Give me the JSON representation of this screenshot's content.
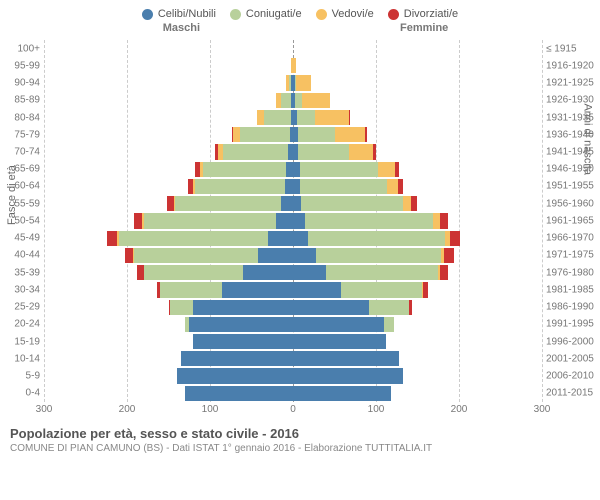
{
  "type": "population-pyramid",
  "legend": [
    {
      "label": "Celibi/Nubili",
      "color": "#4a7ead"
    },
    {
      "label": "Coniugati/e",
      "color": "#b8d09b"
    },
    {
      "label": "Vedovi/e",
      "color": "#f7c162"
    },
    {
      "label": "Divorziati/e",
      "color": "#cc3333"
    }
  ],
  "header_left": "Maschi",
  "header_right": "Femmine",
  "ylabel_left": "Fasce di età",
  "ylabel_right": "Anni di nascita",
  "xlim_max": 300,
  "x_ticks": [
    -300,
    -200,
    -100,
    0,
    100,
    200,
    300
  ],
  "x_tick_labels": [
    "300",
    "200",
    "100",
    "0",
    "100",
    "200",
    "300"
  ],
  "grid_color": "#cccccc",
  "background_color": "#ffffff",
  "bar_order": [
    "celibi",
    "coniugati",
    "vedovi",
    "divorziati"
  ],
  "rows": [
    {
      "age": "100+",
      "birth": "≤ 1915",
      "m": {
        "celibi": 0,
        "coniugati": 0,
        "vedovi": 0,
        "divorziati": 0
      },
      "f": {
        "celibi": 0,
        "coniugati": 0,
        "vedovi": 0,
        "divorziati": 0
      }
    },
    {
      "age": "95-99",
      "birth": "1916-1920",
      "m": {
        "celibi": 0,
        "coniugati": 0,
        "vedovi": 2,
        "divorziati": 0
      },
      "f": {
        "celibi": 0,
        "coniugati": 0,
        "vedovi": 4,
        "divorziati": 0
      }
    },
    {
      "age": "90-94",
      "birth": "1921-1925",
      "m": {
        "celibi": 2,
        "coniugati": 3,
        "vedovi": 3,
        "divorziati": 0
      },
      "f": {
        "celibi": 2,
        "coniugati": 2,
        "vedovi": 18,
        "divorziati": 0
      }
    },
    {
      "age": "85-89",
      "birth": "1926-1930",
      "m": {
        "celibi": 2,
        "coniugati": 12,
        "vedovi": 6,
        "divorziati": 0
      },
      "f": {
        "celibi": 3,
        "coniugati": 8,
        "vedovi": 34,
        "divorziati": 0
      }
    },
    {
      "age": "80-84",
      "birth": "1931-1935",
      "m": {
        "celibi": 3,
        "coniugati": 32,
        "vedovi": 8,
        "divorziati": 0
      },
      "f": {
        "celibi": 5,
        "coniugati": 22,
        "vedovi": 40,
        "divorziati": 2
      }
    },
    {
      "age": "75-79",
      "birth": "1936-1940",
      "m": {
        "celibi": 4,
        "coniugati": 60,
        "vedovi": 8,
        "divorziati": 2
      },
      "f": {
        "celibi": 6,
        "coniugati": 45,
        "vedovi": 36,
        "divorziati": 2
      }
    },
    {
      "age": "70-74",
      "birth": "1941-1945",
      "m": {
        "celibi": 6,
        "coniugati": 78,
        "vedovi": 6,
        "divorziati": 4
      },
      "f": {
        "celibi": 6,
        "coniugati": 62,
        "vedovi": 28,
        "divorziati": 4
      }
    },
    {
      "age": "65-69",
      "birth": "1946-1950",
      "m": {
        "celibi": 8,
        "coniugati": 100,
        "vedovi": 4,
        "divorziati": 6
      },
      "f": {
        "celibi": 8,
        "coniugati": 95,
        "vedovi": 20,
        "divorziati": 5
      }
    },
    {
      "age": "60-64",
      "birth": "1951-1955",
      "m": {
        "celibi": 10,
        "coniugati": 108,
        "vedovi": 3,
        "divorziati": 6
      },
      "f": {
        "celibi": 8,
        "coniugati": 105,
        "vedovi": 14,
        "divorziati": 5
      }
    },
    {
      "age": "55-59",
      "birth": "1956-1960",
      "m": {
        "celibi": 14,
        "coniugati": 128,
        "vedovi": 2,
        "divorziati": 8
      },
      "f": {
        "celibi": 10,
        "coniugati": 122,
        "vedovi": 10,
        "divorziati": 7
      }
    },
    {
      "age": "50-54",
      "birth": "1961-1965",
      "m": {
        "celibi": 20,
        "coniugati": 160,
        "vedovi": 2,
        "divorziati": 10
      },
      "f": {
        "celibi": 14,
        "coniugati": 155,
        "vedovi": 8,
        "divorziati": 10
      }
    },
    {
      "age": "45-49",
      "birth": "1966-1970",
      "m": {
        "celibi": 30,
        "coniugati": 180,
        "vedovi": 2,
        "divorziati": 12
      },
      "f": {
        "celibi": 18,
        "coniugati": 165,
        "vedovi": 6,
        "divorziati": 12
      }
    },
    {
      "age": "40-44",
      "birth": "1971-1975",
      "m": {
        "celibi": 42,
        "coniugati": 150,
        "vedovi": 1,
        "divorziati": 10
      },
      "f": {
        "celibi": 28,
        "coniugati": 150,
        "vedovi": 4,
        "divorziati": 12
      }
    },
    {
      "age": "35-39",
      "birth": "1976-1980",
      "m": {
        "celibi": 60,
        "coniugati": 120,
        "vedovi": 0,
        "divorziati": 8
      },
      "f": {
        "celibi": 40,
        "coniugati": 135,
        "vedovi": 2,
        "divorziati": 10
      }
    },
    {
      "age": "30-34",
      "birth": "1981-1985",
      "m": {
        "celibi": 85,
        "coniugati": 75,
        "vedovi": 0,
        "divorziati": 4
      },
      "f": {
        "celibi": 58,
        "coniugati": 98,
        "vedovi": 1,
        "divorziati": 6
      }
    },
    {
      "age": "25-29",
      "birth": "1986-1990",
      "m": {
        "celibi": 120,
        "coniugati": 28,
        "vedovi": 0,
        "divorziati": 2
      },
      "f": {
        "celibi": 92,
        "coniugati": 48,
        "vedovi": 0,
        "divorziati": 3
      }
    },
    {
      "age": "20-24",
      "birth": "1991-1995",
      "m": {
        "celibi": 125,
        "coniugati": 5,
        "vedovi": 0,
        "divorziati": 0
      },
      "f": {
        "celibi": 110,
        "coniugati": 12,
        "vedovi": 0,
        "divorziati": 0
      }
    },
    {
      "age": "15-19",
      "birth": "1996-2000",
      "m": {
        "celibi": 120,
        "coniugati": 0,
        "vedovi": 0,
        "divorziati": 0
      },
      "f": {
        "celibi": 112,
        "coniugati": 0,
        "vedovi": 0,
        "divorziati": 0
      }
    },
    {
      "age": "10-14",
      "birth": "2001-2005",
      "m": {
        "celibi": 135,
        "coniugati": 0,
        "vedovi": 0,
        "divorziati": 0
      },
      "f": {
        "celibi": 128,
        "coniugati": 0,
        "vedovi": 0,
        "divorziati": 0
      }
    },
    {
      "age": "5-9",
      "birth": "2006-2010",
      "m": {
        "celibi": 140,
        "coniugati": 0,
        "vedovi": 0,
        "divorziati": 0
      },
      "f": {
        "celibi": 132,
        "coniugati": 0,
        "vedovi": 0,
        "divorziati": 0
      }
    },
    {
      "age": "0-4",
      "birth": "2011-2015",
      "m": {
        "celibi": 130,
        "coniugati": 0,
        "vedovi": 0,
        "divorziati": 0
      },
      "f": {
        "celibi": 118,
        "coniugati": 0,
        "vedovi": 0,
        "divorziati": 0
      }
    }
  ],
  "title": "Popolazione per età, sesso e stato civile - 2016",
  "subtitle": "COMUNE DI PIAN CAMUNO (BS) - Dati ISTAT 1° gennaio 2016 - Elaborazione TUTTITALIA.IT"
}
